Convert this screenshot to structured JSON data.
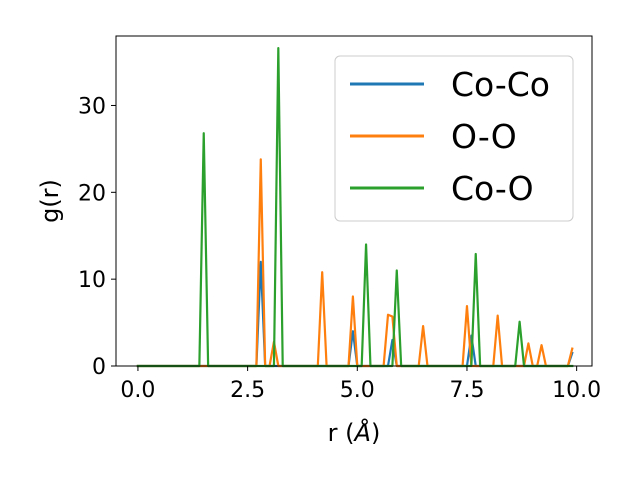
{
  "chart_data": {
    "type": "line",
    "title": "",
    "xlabel": "r (",
    "xlabel_symbol": "Å",
    "xlabel_close": ")",
    "ylabel": "g(r)",
    "xlim": [
      -0.5,
      10.35
    ],
    "ylim": [
      0,
      38
    ],
    "grid": false,
    "legend_position": "upper right",
    "x_ticks": [
      0.0,
      2.5,
      5.0,
      7.5,
      10.0
    ],
    "x_tick_labels": [
      "0.0",
      "2.5",
      "5.0",
      "7.5",
      "10.0"
    ],
    "y_ticks": [
      0,
      10,
      20,
      30
    ],
    "y_tick_labels": [
      "0",
      "10",
      "20",
      "30"
    ],
    "x": [
      0.0,
      0.1,
      0.2,
      0.3,
      0.4,
      0.5,
      0.6,
      0.7,
      0.8,
      0.9,
      1.0,
      1.1,
      1.2,
      1.3,
      1.4,
      1.5,
      1.6,
      1.7,
      1.8,
      1.9,
      2.0,
      2.1,
      2.2,
      2.3,
      2.4,
      2.5,
      2.6,
      2.7,
      2.8,
      2.9,
      3.0,
      3.1,
      3.2,
      3.3,
      3.4,
      3.5,
      3.6,
      3.7,
      3.8,
      3.9,
      4.0,
      4.1,
      4.2,
      4.3,
      4.4,
      4.5,
      4.6,
      4.7,
      4.8,
      4.9,
      5.0,
      5.1,
      5.2,
      5.3,
      5.4,
      5.5,
      5.6,
      5.7,
      5.8,
      5.9,
      6.0,
      6.1,
      6.2,
      6.3,
      6.4,
      6.5,
      6.6,
      6.7,
      6.8,
      6.9,
      7.0,
      7.1,
      7.2,
      7.3,
      7.4,
      7.5,
      7.6,
      7.7,
      7.8,
      7.9,
      8.0,
      8.1,
      8.2,
      8.3,
      8.4,
      8.5,
      8.6,
      8.7,
      8.8,
      8.9,
      9.0,
      9.1,
      9.2,
      9.3,
      9.4,
      9.5,
      9.6,
      9.7,
      9.8,
      9.9
    ],
    "series": [
      {
        "name": "Co-Co",
        "color": "#1f77b4",
        "values": [
          0,
          0,
          0,
          0,
          0,
          0,
          0,
          0,
          0,
          0,
          0,
          0,
          0,
          0,
          0,
          0,
          0,
          0,
          0,
          0,
          0,
          0,
          0,
          0,
          0,
          0,
          0,
          0,
          12.0,
          0,
          0,
          0,
          0,
          0,
          0,
          0,
          0,
          0,
          0,
          0,
          0,
          0,
          0,
          0,
          0,
          0,
          0,
          0,
          0,
          4.0,
          0,
          0,
          0,
          0,
          0,
          0,
          0,
          0,
          3.0,
          0,
          0,
          0,
          0,
          0,
          0,
          0,
          0,
          0,
          0,
          0,
          0,
          0,
          0,
          0,
          0,
          0,
          3.5,
          0,
          0,
          0,
          0,
          0,
          0,
          0,
          0,
          0,
          0,
          0,
          0,
          0,
          0,
          0,
          0,
          0,
          0,
          0,
          0,
          0,
          0,
          1.5
        ]
      },
      {
        "name": "O-O",
        "color": "#ff7f0e",
        "values": [
          0,
          0,
          0,
          0,
          0,
          0,
          0,
          0,
          0,
          0,
          0,
          0,
          0,
          0,
          0,
          0,
          0,
          0,
          0,
          0,
          0,
          0,
          0,
          0,
          0,
          0,
          0,
          0,
          23.8,
          0,
          0,
          2.8,
          0,
          0,
          0,
          0,
          0,
          0,
          0,
          0,
          0,
          0,
          10.8,
          0,
          0,
          0,
          0,
          0,
          0,
          8.0,
          0,
          0,
          0,
          0,
          0,
          0,
          0,
          5.9,
          5.7,
          0,
          0,
          0,
          0,
          0,
          0,
          4.6,
          0,
          0,
          0,
          0,
          0,
          0,
          0,
          0,
          0,
          6.9,
          0,
          0,
          0,
          0,
          0,
          0,
          5.8,
          0,
          0,
          0,
          0,
          0,
          0,
          2.6,
          0,
          0,
          2.4,
          0,
          0,
          0,
          0,
          0,
          0,
          2.0
        ]
      },
      {
        "name": "Co-O",
        "color": "#2ca02c",
        "values": [
          0,
          0,
          0,
          0,
          0,
          0,
          0,
          0,
          0,
          0,
          0,
          0,
          0,
          0,
          0,
          26.8,
          0,
          0,
          0,
          0,
          0,
          0,
          0,
          0,
          0,
          0,
          0,
          0,
          0,
          0,
          0,
          0,
          36.6,
          0,
          0,
          0,
          0,
          0,
          0,
          0,
          0,
          0,
          0,
          0,
          0,
          0,
          0,
          0,
          0,
          0,
          0,
          0,
          14.0,
          0,
          0,
          0,
          0,
          0,
          0,
          11.0,
          0,
          0,
          0,
          0,
          0,
          0,
          0,
          0,
          0,
          0,
          0,
          0,
          0,
          0,
          0,
          0,
          0,
          12.9,
          0,
          0,
          0,
          0,
          0,
          0,
          0,
          0,
          0,
          5.1,
          0,
          0,
          0,
          0,
          0,
          0,
          0,
          0,
          0,
          0,
          0,
          0
        ]
      }
    ]
  }
}
